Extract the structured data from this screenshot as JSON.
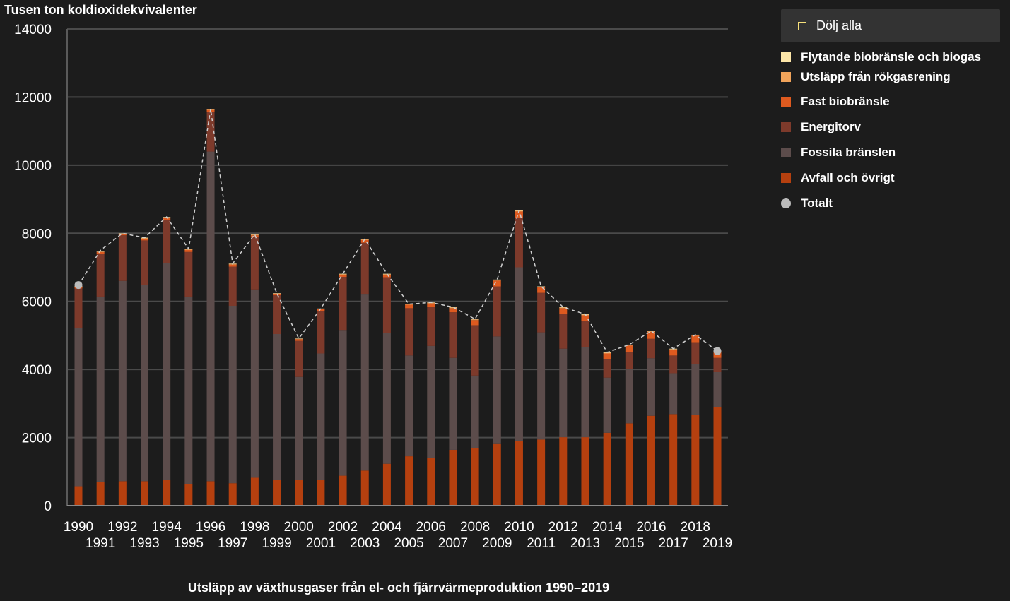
{
  "chart_data": {
    "type": "bar",
    "stacked": true,
    "title": "Utsläpp av växthusgaser från el- och fjärrvärmeproduktion 1990–2019",
    "ylabel": "Tusen ton koldioxidekvivalenter",
    "xlabel": "",
    "ylim": [
      0,
      14000
    ],
    "yticks": [
      0,
      2000,
      4000,
      6000,
      8000,
      10000,
      12000,
      14000
    ],
    "grid": true,
    "legend_position": "right",
    "categories": [
      "1990",
      "1991",
      "1992",
      "1993",
      "1994",
      "1995",
      "1996",
      "1997",
      "1998",
      "1999",
      "2000",
      "2001",
      "2002",
      "2003",
      "2004",
      "2005",
      "2006",
      "2007",
      "2008",
      "2009",
      "2010",
      "2011",
      "2012",
      "2013",
      "2014",
      "2015",
      "2016",
      "2017",
      "2018",
      "2019"
    ],
    "series": [
      {
        "name": "Avfall och övrigt",
        "color": "#b5400f",
        "values": [
          570,
          700,
          720,
          720,
          760,
          640,
          720,
          660,
          820,
          750,
          750,
          760,
          880,
          1030,
          1230,
          1450,
          1400,
          1640,
          1700,
          1830,
          1890,
          1940,
          2010,
          2010,
          2140,
          2420,
          2640,
          2690,
          2660,
          2900
        ]
      },
      {
        "name": "Fossila bränslen",
        "color": "#5c4c4b",
        "values": [
          4650,
          5440,
          5880,
          5770,
          6360,
          5500,
          9680,
          5210,
          5530,
          4290,
          3030,
          3710,
          4280,
          5170,
          3850,
          2960,
          3290,
          2700,
          2120,
          3140,
          5110,
          3150,
          2600,
          2640,
          1620,
          1590,
          1690,
          1200,
          1490,
          1020
        ]
      },
      {
        "name": "Energitorv",
        "color": "#7d3a2b",
        "values": [
          1160,
          1260,
          1340,
          1300,
          1280,
          1310,
          1160,
          1150,
          1530,
          1140,
          1060,
          1250,
          1560,
          1520,
          1630,
          1390,
          1140,
          1340,
          1480,
          1470,
          1450,
          1160,
          1020,
          780,
          540,
          510,
          570,
          520,
          650,
          420
        ]
      },
      {
        "name": "Fast biobränsle",
        "color": "#de5a1f",
        "values": [
          40,
          50,
          40,
          50,
          50,
          60,
          60,
          60,
          60,
          40,
          50,
          50,
          60,
          80,
          70,
          100,
          110,
          120,
          150,
          170,
          190,
          160,
          170,
          160,
          170,
          180,
          200,
          170,
          190,
          160
        ]
      },
      {
        "name": "Utsläpp från rökgasrening",
        "color": "#f0a35a",
        "values": [
          20,
          10,
          10,
          20,
          20,
          20,
          20,
          20,
          20,
          10,
          10,
          10,
          20,
          20,
          20,
          10,
          20,
          20,
          20,
          20,
          20,
          20,
          20,
          20,
          20,
          20,
          20,
          20,
          20,
          20
        ]
      },
      {
        "name": "Flytande biobränsle och biogas",
        "color": "#fde6a8",
        "values": [
          10,
          10,
          10,
          10,
          10,
          10,
          10,
          10,
          10,
          10,
          10,
          10,
          10,
          10,
          10,
          10,
          10,
          10,
          10,
          10,
          10,
          10,
          10,
          10,
          10,
          10,
          10,
          10,
          10,
          10
        ]
      }
    ],
    "total": {
      "name": "Totalt",
      "color": "#bbbbbb",
      "values": [
        6480,
        7500,
        8000,
        7870,
        8480,
        7540,
        11650,
        7110,
        7970,
        6240,
        4910,
        5790,
        6810,
        7830,
        6810,
        5920,
        5970,
        5830,
        5480,
        6640,
        8670,
        6440,
        5830,
        5620,
        4500,
        4730,
        5130,
        4610,
        5020,
        4540
      ]
    }
  },
  "legend": {
    "hide_all_label": "Dölj alla",
    "items": [
      {
        "label": "Flytande biobränsle och biogas",
        "color": "#fde6a8",
        "shape": "square"
      },
      {
        "label": "Utsläpp från rökgasrening",
        "color": "#f0a35a",
        "shape": "square"
      },
      {
        "label": "Fast biobränsle",
        "color": "#de5a1f",
        "shape": "square"
      },
      {
        "label": "Energitorv",
        "color": "#7d3a2b",
        "shape": "square"
      },
      {
        "label": "Fossila bränslen",
        "color": "#5c4c4b",
        "shape": "square"
      },
      {
        "label": "Avfall och övrigt",
        "color": "#b5400f",
        "shape": "square"
      },
      {
        "label": "Totalt",
        "color": "#bbbbbb",
        "shape": "circle"
      }
    ]
  }
}
